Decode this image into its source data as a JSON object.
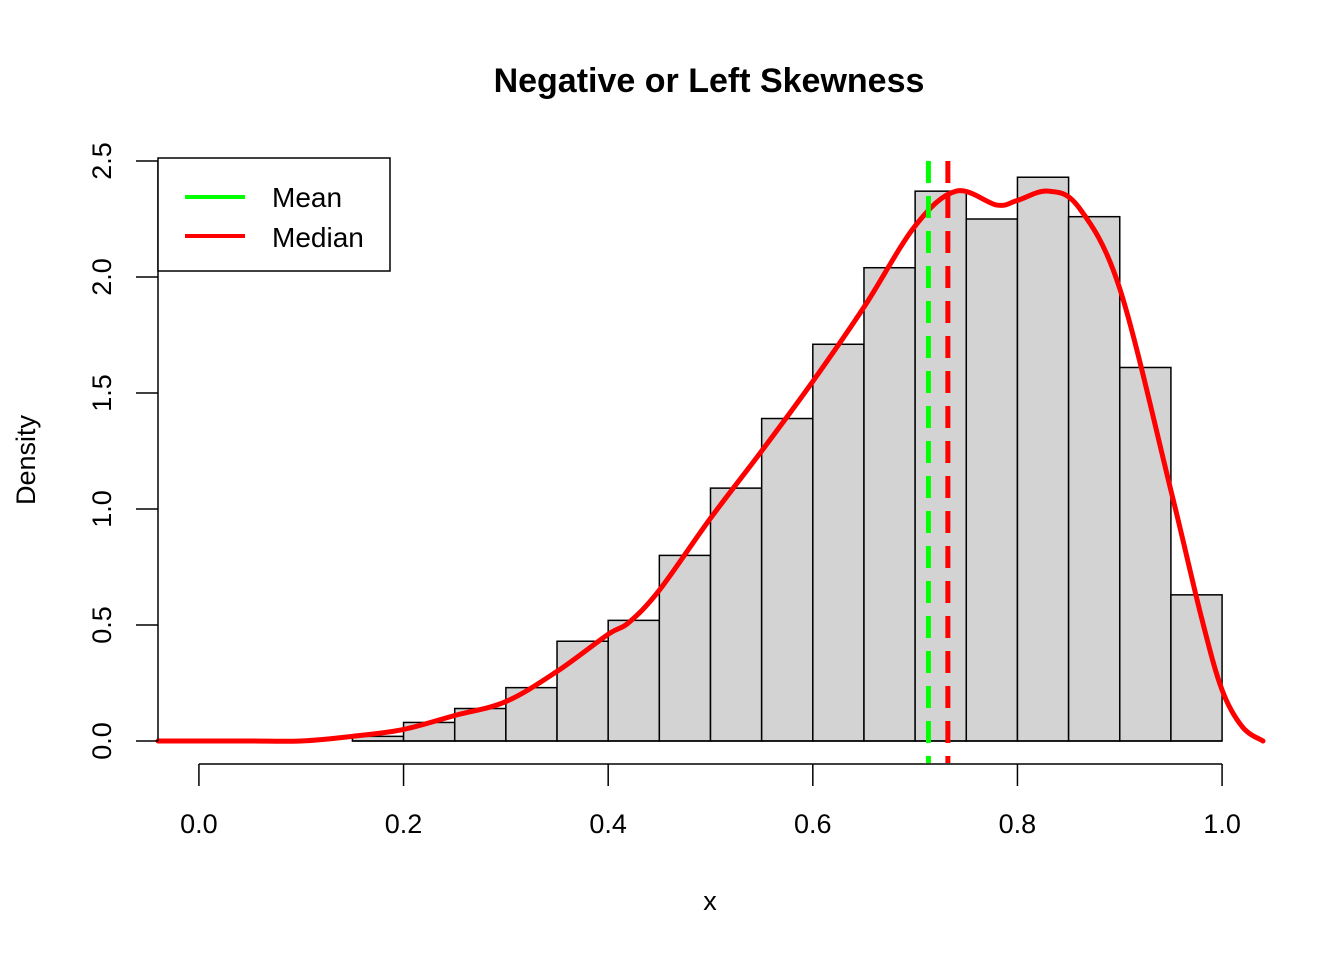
{
  "chart_data": {
    "type": "bar",
    "title": "Negative or Left Skewness",
    "xlabel": "x",
    "ylabel": "Density",
    "xlim": [
      -0.04,
      1.04
    ],
    "ylim": [
      0,
      2.5
    ],
    "x_ticks": [
      "0.0",
      "0.2",
      "0.4",
      "0.6",
      "0.8",
      "1.0"
    ],
    "y_ticks": [
      "0.0",
      "0.5",
      "1.0",
      "1.5",
      "2.0",
      "2.5"
    ],
    "grid": false,
    "legend_position": "top-left",
    "bin_edges": [
      0.15,
      0.2,
      0.25,
      0.3,
      0.35,
      0.4,
      0.45,
      0.5,
      0.55,
      0.6,
      0.65,
      0.7,
      0.75,
      0.8,
      0.85,
      0.9,
      0.95,
      1.0
    ],
    "densities": [
      0.02,
      0.08,
      0.14,
      0.23,
      0.43,
      0.52,
      0.8,
      1.09,
      1.39,
      1.71,
      2.04,
      2.37,
      2.25,
      2.43,
      2.26,
      1.61,
      0.63
    ],
    "bar_color": "#d3d3d3",
    "density_curve": {
      "color": "#ff0000",
      "x": [
        -0.04,
        0.0,
        0.05,
        0.1,
        0.15,
        0.2,
        0.25,
        0.3,
        0.35,
        0.4,
        0.42,
        0.45,
        0.5,
        0.55,
        0.6,
        0.65,
        0.7,
        0.74,
        0.78,
        0.8,
        0.83,
        0.86,
        0.9,
        0.95,
        0.98,
        1.0,
        1.02,
        1.04
      ],
      "y": [
        0.0,
        0.0,
        0.0,
        0.0,
        0.02,
        0.05,
        0.11,
        0.17,
        0.3,
        0.46,
        0.51,
        0.65,
        0.96,
        1.25,
        1.55,
        1.87,
        2.22,
        2.37,
        2.31,
        2.33,
        2.37,
        2.3,
        1.95,
        1.08,
        0.53,
        0.22,
        0.06,
        0.0
      ]
    },
    "vlines": [
      {
        "name": "Mean",
        "x": 0.713,
        "color": "#00ff00"
      },
      {
        "name": "Median",
        "x": 0.732,
        "color": "#ff0000"
      }
    ],
    "legend": [
      {
        "label": "Mean",
        "color": "#00ff00"
      },
      {
        "label": "Median",
        "color": "#ff0000"
      }
    ]
  }
}
